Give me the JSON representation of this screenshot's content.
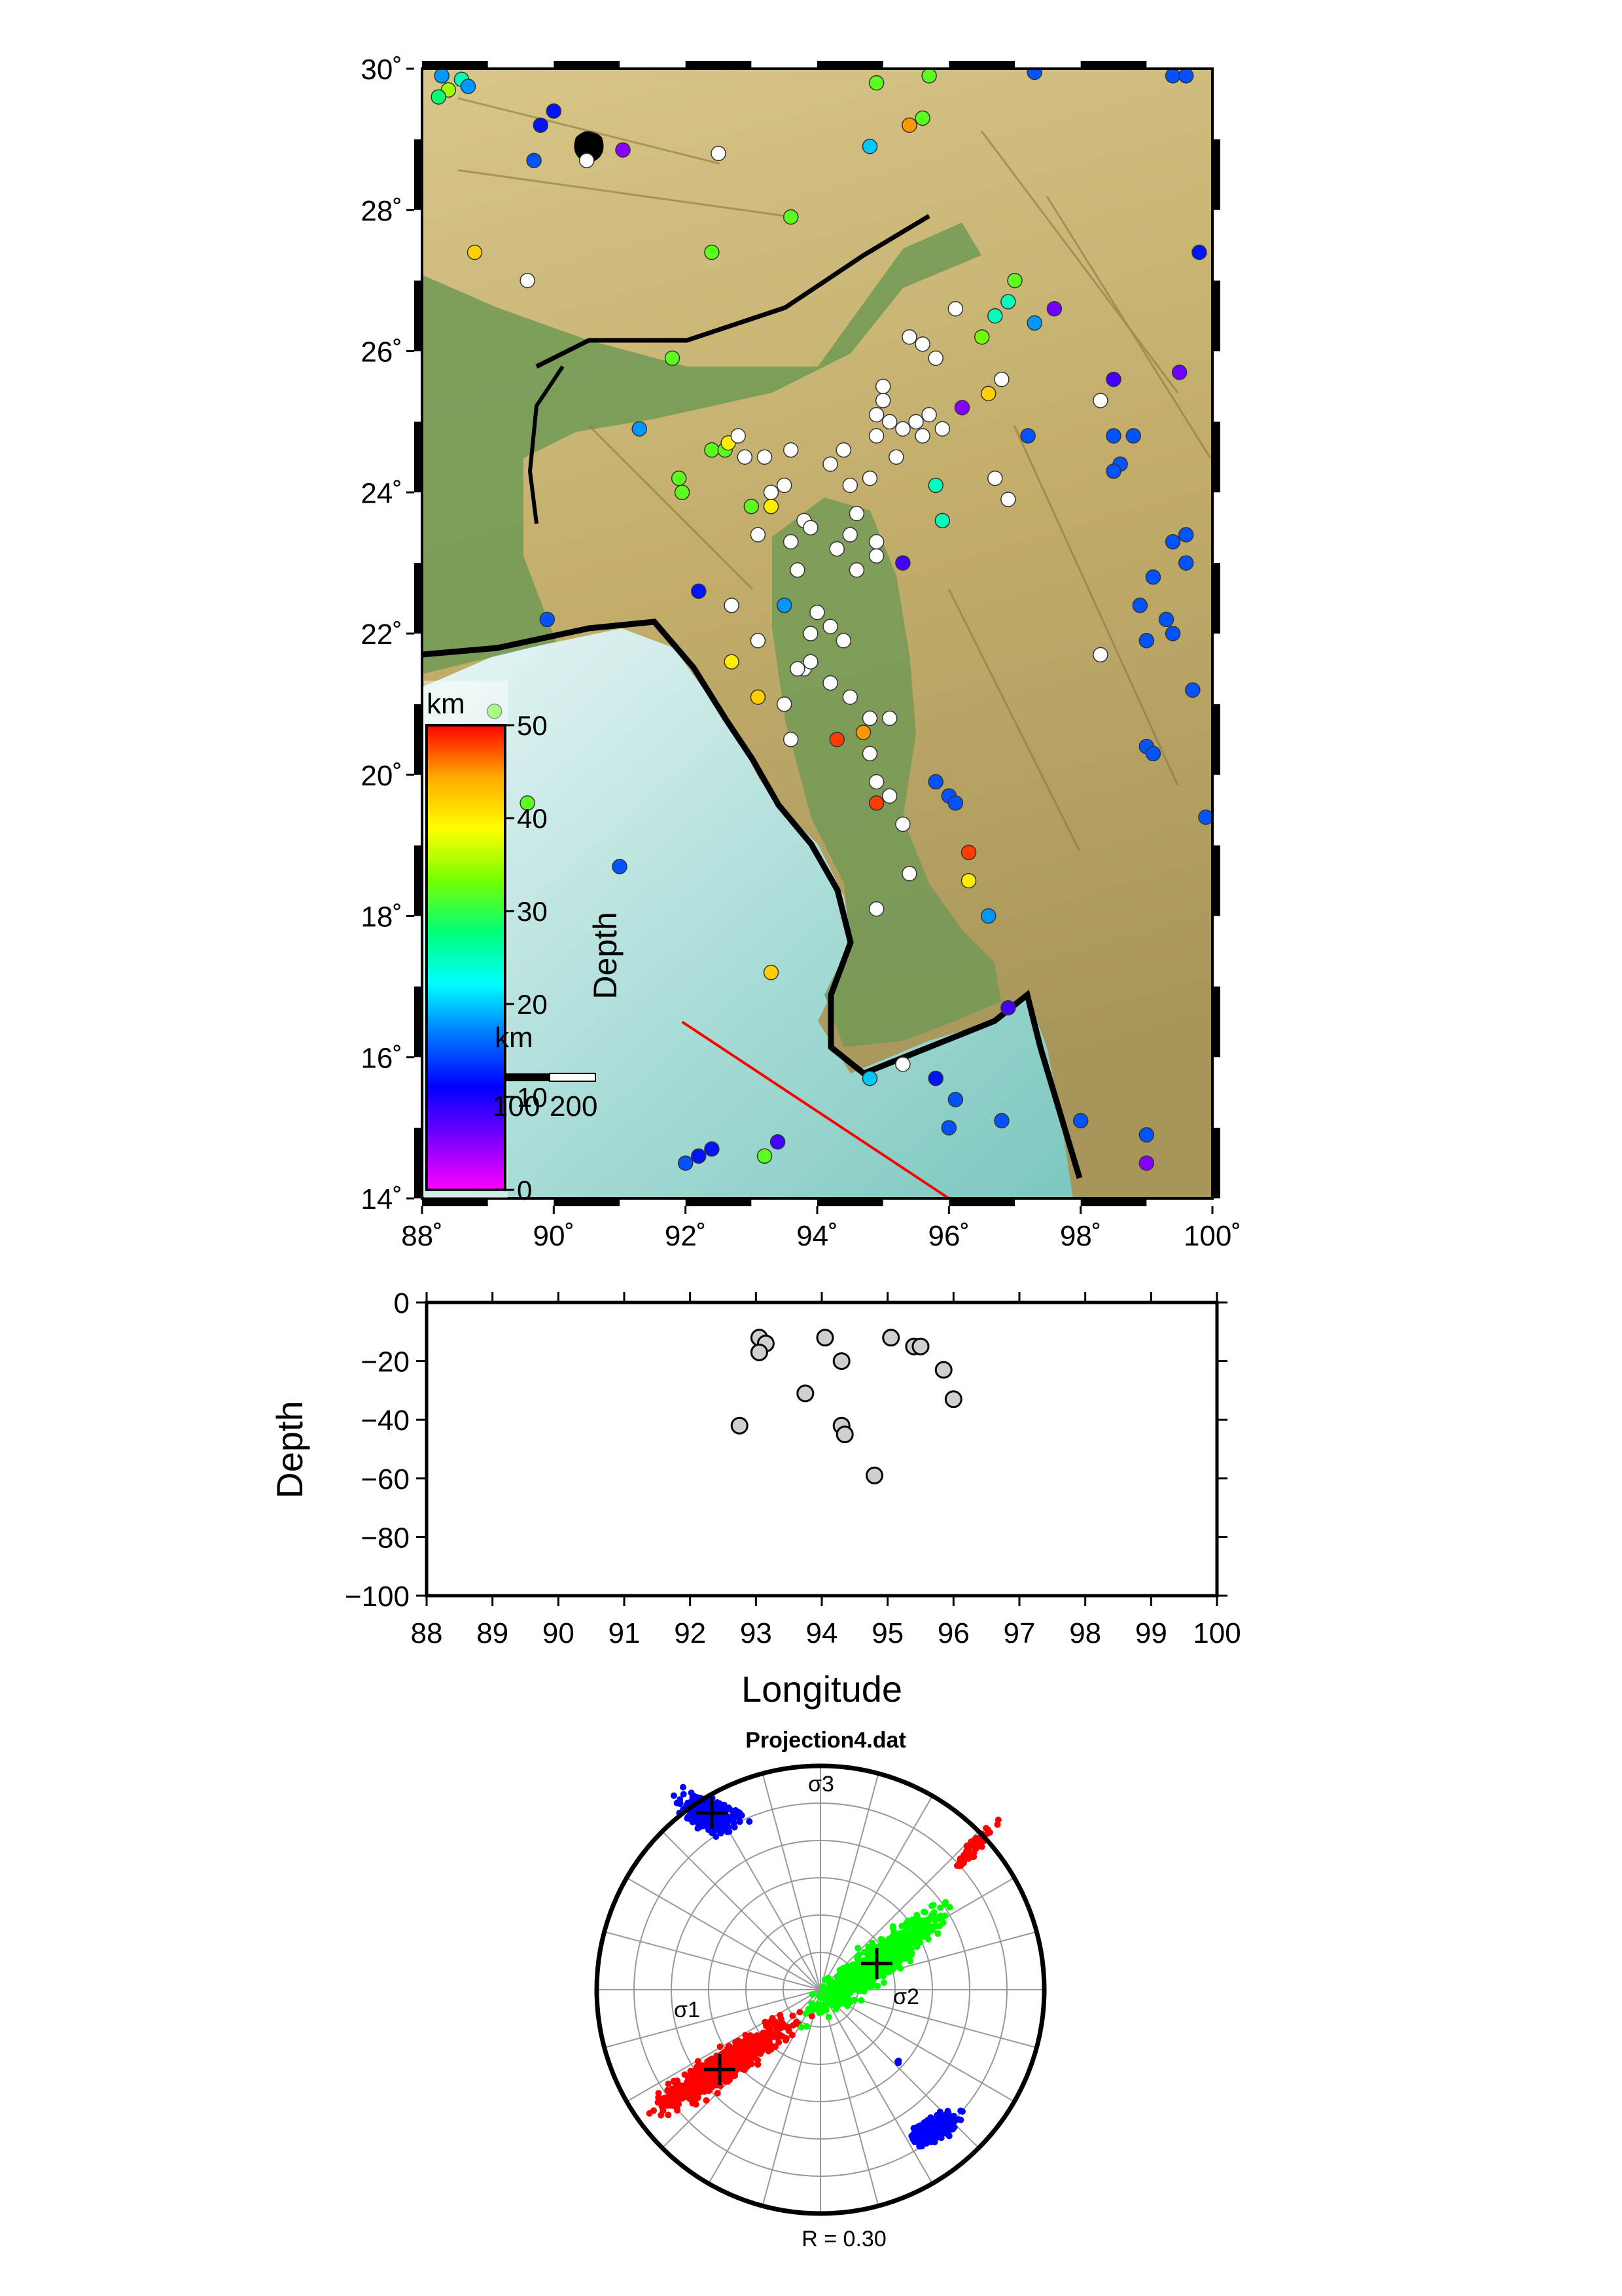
{
  "chart_data": [
    {
      "type": "scatter",
      "panel": "map",
      "x_ticks": [
        "88˚",
        "90˚",
        "92˚",
        "94˚",
        "96˚",
        "98˚",
        "100˚"
      ],
      "y_ticks": [
        "14˚",
        "16˚",
        "18˚",
        "20˚",
        "22˚",
        "24˚",
        "26˚",
        "28˚",
        "30˚"
      ],
      "xlim": [
        88,
        100
      ],
      "ylim": [
        14,
        30
      ],
      "colorbar": {
        "unit": "km",
        "label": "Depth",
        "ticks": [
          "0",
          "10",
          "20",
          "30",
          "40",
          "50"
        ],
        "range": [
          0,
          50
        ],
        "colors": [
          "#ff00ff",
          "#7a00ff",
          "#0000ff",
          "#0077ff",
          "#00ffff",
          "#00ff77",
          "#77ff00",
          "#ffff00",
          "#ffaa00",
          "#ff0000"
        ]
      },
      "scale_bar": {
        "unit": "km",
        "labels": [
          "100",
          "200"
        ]
      },
      "profile_line": {
        "start": [
          91.95,
          16.5
        ],
        "end": [
          96.0,
          14.0
        ]
      },
      "events": [
        [
          88.3,
          29.9,
          18
        ],
        [
          88.6,
          29.85,
          25
        ],
        [
          88.4,
          29.7,
          35
        ],
        [
          88.7,
          29.75,
          18
        ],
        [
          88.25,
          29.6,
          28
        ],
        [
          90.0,
          29.4,
          12
        ],
        [
          89.8,
          29.2,
          12
        ],
        [
          89.7,
          28.7,
          15
        ],
        [
          90.5,
          28.7,
          0
        ],
        [
          91.05,
          28.85,
          5
        ],
        [
          92.5,
          28.8,
          0
        ],
        [
          93.6,
          27.9,
          32
        ],
        [
          94.8,
          28.9,
          20
        ],
        [
          94.9,
          29.8,
          32
        ],
        [
          95.7,
          29.9,
          32
        ],
        [
          95.6,
          29.3,
          32
        ],
        [
          95.4,
          29.2,
          45
        ],
        [
          97.3,
          29.95,
          15
        ],
        [
          99.4,
          29.9,
          15
        ],
        [
          99.6,
          29.9,
          15
        ],
        [
          99.8,
          27.4,
          12
        ],
        [
          88.8,
          27.4,
          42
        ],
        [
          89.6,
          27.0,
          0
        ],
        [
          92.4,
          27.4,
          32
        ],
        [
          91.8,
          25.9,
          32
        ],
        [
          96.1,
          26.6,
          0
        ],
        [
          96.5,
          26.2,
          33
        ],
        [
          96.7,
          26.5,
          25
        ],
        [
          96.9,
          26.7,
          25
        ],
        [
          97.0,
          27.0,
          32
        ],
        [
          97.3,
          26.4,
          18
        ],
        [
          97.6,
          26.6,
          6
        ],
        [
          95.4,
          26.2,
          0
        ],
        [
          95.6,
          26.1,
          0
        ],
        [
          95.8,
          25.9,
          0
        ],
        [
          96.2,
          25.2,
          5
        ],
        [
          96.6,
          25.4,
          42
        ],
        [
          96.8,
          25.6,
          0
        ],
        [
          97.2,
          24.8,
          15
        ],
        [
          98.5,
          25.6,
          8
        ],
        [
          98.3,
          25.3,
          0
        ],
        [
          99.5,
          25.7,
          6
        ],
        [
          98.5,
          24.8,
          15
        ],
        [
          98.8,
          24.8,
          15
        ],
        [
          98.6,
          24.4,
          15
        ],
        [
          98.5,
          24.3,
          15
        ],
        [
          99.4,
          23.3,
          15
        ],
        [
          99.6,
          23.4,
          15
        ],
        [
          99.6,
          23.0,
          15
        ],
        [
          99.1,
          22.8,
          15
        ],
        [
          98.9,
          22.4,
          15
        ],
        [
          99.3,
          22.2,
          15
        ],
        [
          99.4,
          22.0,
          15
        ],
        [
          99.0,
          21.9,
          15
        ],
        [
          99.7,
          21.2,
          15
        ],
        [
          99.9,
          19.4,
          15
        ],
        [
          99.0,
          20.4,
          15
        ],
        [
          99.1,
          20.3,
          15
        ],
        [
          98.3,
          21.7,
          0
        ],
        [
          96.7,
          24.2,
          0
        ],
        [
          96.9,
          23.9,
          0
        ],
        [
          95.9,
          24.9,
          0
        ],
        [
          95.8,
          24.1,
          25
        ],
        [
          95.9,
          23.6,
          25
        ],
        [
          95.3,
          23.0,
          8
        ],
        [
          91.3,
          24.9,
          18
        ],
        [
          89.9,
          22.2,
          15
        ],
        [
          91.9,
          24.2,
          32
        ],
        [
          91.95,
          24.0,
          32
        ],
        [
          92.4,
          24.6,
          32
        ],
        [
          92.6,
          24.6,
          32
        ],
        [
          92.65,
          24.7,
          40
        ],
        [
          92.8,
          24.8,
          0
        ],
        [
          92.9,
          24.5,
          0
        ],
        [
          93.0,
          23.8,
          32
        ],
        [
          93.3,
          23.8,
          40
        ],
        [
          93.1,
          23.4,
          0
        ],
        [
          93.3,
          24.0,
          0
        ],
        [
          93.2,
          24.5,
          0
        ],
        [
          93.5,
          24.1,
          0
        ],
        [
          93.6,
          24.6,
          0
        ],
        [
          93.8,
          23.6,
          0
        ],
        [
          93.6,
          23.3,
          0
        ],
        [
          93.7,
          22.9,
          0
        ],
        [
          93.9,
          23.5,
          0
        ],
        [
          94.2,
          24.4,
          0
        ],
        [
          94.4,
          24.6,
          0
        ],
        [
          94.5,
          24.1,
          0
        ],
        [
          94.3,
          23.2,
          0
        ],
        [
          94.5,
          23.4,
          0
        ],
        [
          94.6,
          22.9,
          0
        ],
        [
          94.9,
          23.1,
          0
        ],
        [
          94.9,
          23.3,
          0
        ],
        [
          94.6,
          23.7,
          0
        ],
        [
          94.8,
          24.2,
          0
        ],
        [
          94.9,
          24.8,
          0
        ],
        [
          94.9,
          25.1,
          0
        ],
        [
          95.0,
          25.3,
          0
        ],
        [
          95.0,
          25.5,
          0
        ],
        [
          95.1,
          25.0,
          0
        ],
        [
          95.3,
          24.9,
          0
        ],
        [
          95.2,
          24.5,
          0
        ],
        [
          95.5,
          25.0,
          0
        ],
        [
          95.6,
          24.8,
          0
        ],
        [
          95.7,
          25.1,
          0
        ],
        [
          94.0,
          22.3,
          0
        ],
        [
          94.2,
          22.1,
          0
        ],
        [
          94.4,
          21.9,
          0
        ],
        [
          94.2,
          21.3,
          0
        ],
        [
          93.9,
          22.0,
          0
        ],
        [
          93.5,
          22.4,
          18
        ],
        [
          92.2,
          22.6,
          12
        ],
        [
          92.7,
          22.4,
          0
        ],
        [
          92.7,
          21.6,
          40
        ],
        [
          93.1,
          21.9,
          0
        ],
        [
          93.1,
          21.1,
          42
        ],
        [
          93.5,
          21.0,
          0
        ],
        [
          93.8,
          21.5,
          0
        ],
        [
          93.9,
          21.6,
          0
        ],
        [
          93.7,
          21.5,
          0
        ],
        [
          94.5,
          21.1,
          0
        ],
        [
          94.7,
          20.6,
          45
        ],
        [
          94.8,
          20.8,
          0
        ],
        [
          95.1,
          20.8,
          0
        ],
        [
          94.8,
          20.3,
          0
        ],
        [
          94.3,
          20.5,
          48
        ],
        [
          93.6,
          20.5,
          0
        ],
        [
          94.9,
          19.9,
          0
        ],
        [
          95.1,
          19.7,
          0
        ],
        [
          94.9,
          19.6,
          48
        ],
        [
          95.3,
          19.3,
          0
        ],
        [
          95.8,
          19.9,
          15
        ],
        [
          96.0,
          19.7,
          15
        ],
        [
          96.1,
          19.6,
          15
        ],
        [
          96.3,
          18.9,
          48
        ],
        [
          96.3,
          18.5,
          40
        ],
        [
          96.6,
          18.0,
          18
        ],
        [
          95.4,
          18.6,
          0
        ],
        [
          94.9,
          18.1,
          0
        ],
        [
          89.1,
          20.9,
          32
        ],
        [
          89.6,
          19.6,
          32
        ],
        [
          91.0,
          18.7,
          15
        ],
        [
          93.3,
          17.2,
          42
        ],
        [
          96.9,
          16.7,
          8
        ],
        [
          95.3,
          15.9,
          0
        ],
        [
          94.8,
          15.7,
          20
        ],
        [
          95.8,
          15.7,
          12
        ],
        [
          96.1,
          15.4,
          15
        ],
        [
          96.0,
          15.0,
          15
        ],
        [
          96.8,
          15.1,
          15
        ],
        [
          98.0,
          15.1,
          15
        ],
        [
          99.0,
          14.9,
          15
        ],
        [
          99.0,
          14.5,
          5
        ],
        [
          92.2,
          14.6,
          12
        ],
        [
          92.4,
          14.7,
          12
        ],
        [
          92.0,
          14.5,
          15
        ],
        [
          93.4,
          14.8,
          8
        ],
        [
          93.2,
          14.6,
          32
        ]
      ]
    },
    {
      "type": "scatter",
      "panel": "depth-profile",
      "xlabel": "Longitude",
      "ylabel": "Depth",
      "xlim": [
        88,
        100
      ],
      "ylim": [
        -100,
        0
      ],
      "x_ticks": [
        "88",
        "89",
        "90",
        "91",
        "92",
        "93",
        "94",
        "95",
        "96",
        "97",
        "98",
        "99",
        "100"
      ],
      "y_ticks": [
        "0",
        "−20",
        "−40",
        "−60",
        "−80",
        "−100"
      ],
      "points": [
        [
          93.05,
          -12
        ],
        [
          93.15,
          -14
        ],
        [
          93.05,
          -17
        ],
        [
          94.05,
          -12
        ],
        [
          94.3,
          -20
        ],
        [
          95.05,
          -12
        ],
        [
          95.4,
          -15
        ],
        [
          95.5,
          -15
        ],
        [
          95.85,
          -23
        ],
        [
          96.0,
          -33
        ],
        [
          93.75,
          -31
        ],
        [
          94.3,
          -42
        ],
        [
          94.35,
          -45
        ],
        [
          92.75,
          -42
        ],
        [
          94.8,
          -59
        ]
      ]
    },
    {
      "type": "scatter",
      "panel": "stereonet",
      "title": "Projection4.dat",
      "labels": {
        "sigma1": "σ1",
        "sigma2": "σ2",
        "sigma3": "σ3"
      },
      "footer": "R = 0.30",
      "colors": {
        "sigma1": "#ff0000",
        "sigma2": "#00ff00",
        "sigma3": "#0000ff"
      }
    }
  ]
}
